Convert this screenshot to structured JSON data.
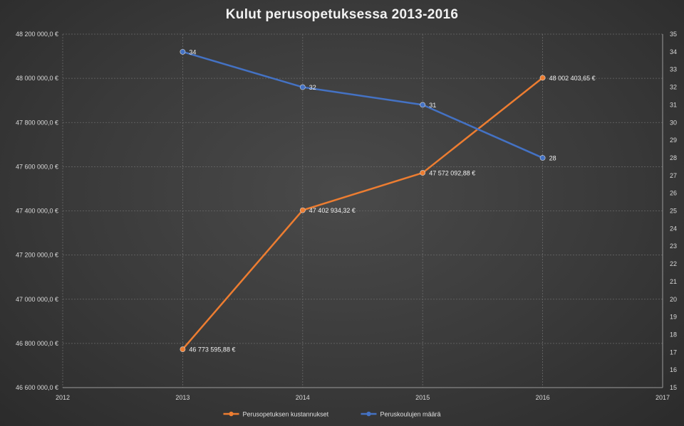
{
  "chart_data": {
    "type": "line",
    "title": "Kulut perusopetuksessa 2013-2016",
    "x": [
      2013,
      2014,
      2015,
      2016
    ],
    "xlim": [
      2012,
      2017
    ],
    "x_ticks": [
      "2012",
      "2013",
      "2014",
      "2015",
      "2016",
      "2017"
    ],
    "ylim": [
      46600000,
      48200000
    ],
    "y_ticks": [
      "46 600 000,0 €",
      "46 800 000,0 €",
      "47 000 000,0 €",
      "47 200 000,0 €",
      "47 400 000,0 €",
      "47 600 000,0 €",
      "47 800 000,0 €",
      "48 000 000,0 €",
      "48 200 000,0 €"
    ],
    "y2lim": [
      15,
      35
    ],
    "y2_ticks": [
      "15",
      "16",
      "17",
      "18",
      "19",
      "20",
      "21",
      "22",
      "23",
      "24",
      "25",
      "26",
      "27",
      "28",
      "29",
      "30",
      "31",
      "32",
      "33",
      "34",
      "35"
    ],
    "grid": true,
    "legend_position": "bottom",
    "series": [
      {
        "name": "Perusopetuksen kustannukset",
        "axis": "left",
        "color": "#ed7d31",
        "values": [
          46773595.88,
          47402934.32,
          47572092.88,
          48002403.65
        ],
        "labels": [
          "46 773 595,88 €",
          "47 402 934,32 €",
          "47 572 092,88 €",
          "48 002 403,65 €"
        ]
      },
      {
        "name": "Peruskoulujen määrä",
        "axis": "right",
        "color": "#4472c4",
        "values": [
          34,
          32,
          31,
          28
        ],
        "labels": [
          "34",
          "32",
          "31",
          "28"
        ]
      }
    ]
  }
}
